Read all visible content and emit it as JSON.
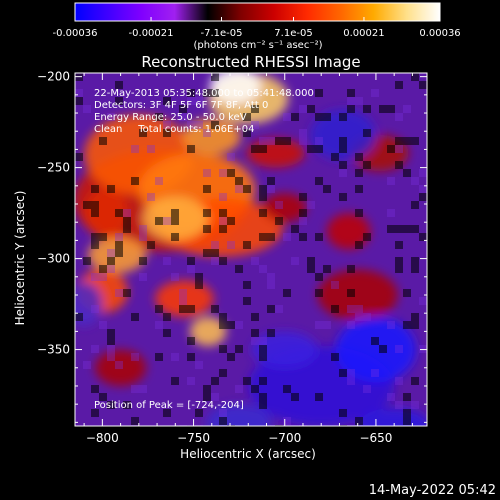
{
  "chart_data": {
    "type": "heatmap",
    "title": "Reconstructed RHESSI Image",
    "xlabel": "Heliocentric X (arcsec)",
    "ylabel": "Heliocentric Y (arcsec)",
    "xlim": [
      -815,
      -622
    ],
    "ylim": [
      -392,
      -198
    ],
    "x_ticks": [
      -800,
      -750,
      -700,
      -650
    ],
    "y_ticks": [
      -200,
      -250,
      -300,
      -350
    ],
    "colorbar": {
      "range": [
        -0.00036,
        0.00036
      ],
      "tick_values": [
        -0.00036,
        -0.00021,
        -7.1e-05,
        7.1e-05,
        0.00021,
        0.00036
      ],
      "tick_labels": [
        "-0.00036",
        "-0.00021",
        "-7.1e-05",
        "7.1e-05",
        "0.00021",
        "0.00036"
      ],
      "unit_label": "(photons cm⁻² s⁻¹ asec⁻²)",
      "colors": [
        "#0000ff",
        "#4000ff",
        "#8000ff",
        "#a020f0",
        "#000000",
        "#800000",
        "#cc0000",
        "#ff2a00",
        "#ff6600",
        "#ffaa00",
        "#ffe08a",
        "#ffffff"
      ]
    },
    "annotations": [
      "22-May-2013 05:35:48.000 to 05:41:48.000",
      "Detectors: 3F 4F 5F 6F 7F 8F, Att 0",
      "Energy Range: 25.0 - 50.0 keV",
      "Clean     Total counts: 1.06E+04"
    ],
    "peak_label": "Position of Peak = [-724,-204]",
    "peak_position": [
      -724,
      -204
    ],
    "grid": false
  },
  "timestamp": "14-May-2022 05:42"
}
